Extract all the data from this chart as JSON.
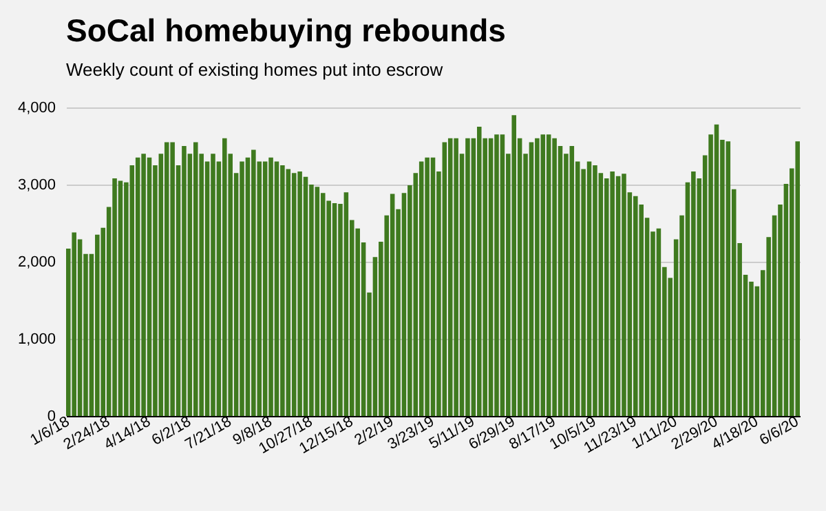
{
  "chart_data": {
    "type": "bar",
    "title": "SoCal homebuying rebounds",
    "subtitle": "Weekly count of existing homes put into escrow",
    "categories": [
      "1/6/18",
      null,
      null,
      null,
      null,
      null,
      null,
      "2/24/18",
      null,
      null,
      null,
      null,
      null,
      null,
      "4/14/18",
      null,
      null,
      null,
      null,
      null,
      null,
      "6/2/18",
      null,
      null,
      null,
      null,
      null,
      null,
      "7/21/18",
      null,
      null,
      null,
      null,
      null,
      null,
      "9/8/18",
      null,
      null,
      null,
      null,
      null,
      null,
      "10/27/18",
      null,
      null,
      null,
      null,
      null,
      null,
      "12/15/18",
      null,
      null,
      null,
      null,
      null,
      null,
      "2/2/19",
      null,
      null,
      null,
      null,
      null,
      null,
      "3/23/19",
      null,
      null,
      null,
      null,
      null,
      null,
      "5/11/19",
      null,
      null,
      null,
      null,
      null,
      null,
      "6/29/19",
      null,
      null,
      null,
      null,
      null,
      null,
      "8/17/19",
      null,
      null,
      null,
      null,
      null,
      null,
      "10/5/19",
      null,
      null,
      null,
      null,
      null,
      null,
      "11/23/19",
      null,
      null,
      null,
      null,
      null,
      null,
      "1/11/20",
      null,
      null,
      null,
      null,
      null,
      null,
      "2/29/20",
      null,
      null,
      null,
      null,
      null,
      null,
      "4/18/20",
      null,
      null,
      null,
      null,
      null,
      null,
      "6/6/20"
    ],
    "values": [
      2170,
      2380,
      2290,
      2100,
      2100,
      2350,
      2440,
      2710,
      3080,
      3050,
      3030,
      3250,
      3350,
      3400,
      3350,
      3250,
      3400,
      3550,
      3550,
      3250,
      3500,
      3400,
      3550,
      3400,
      3300,
      3400,
      3300,
      3600,
      3400,
      3150,
      3300,
      3350,
      3450,
      3300,
      3300,
      3350,
      3300,
      3250,
      3200,
      3150,
      3170,
      3100,
      3000,
      2970,
      2890,
      2790,
      2760,
      2750,
      2900,
      2540,
      2430,
      2250,
      1600,
      2060,
      2260,
      2600,
      2880,
      2680,
      2890,
      2990,
      3150,
      3300,
      3350,
      3350,
      3170,
      3550,
      3600,
      3600,
      3400,
      3600,
      3600,
      3750,
      3600,
      3600,
      3650,
      3650,
      3400,
      3900,
      3600,
      3400,
      3550,
      3600,
      3650,
      3650,
      3600,
      3500,
      3400,
      3500,
      3300,
      3200,
      3300,
      3250,
      3150,
      3080,
      3170,
      3110,
      3140,
      2900,
      2850,
      2740,
      2570,
      2390,
      2430,
      1930,
      1790,
      2290,
      2600,
      3030,
      3170,
      3080,
      3380,
      3650,
      3780,
      3580,
      3560,
      2940,
      2240,
      1830,
      1740,
      1680,
      1890,
      2320,
      2600,
      2740,
      3010,
      3210,
      3560
    ],
    "color": "#3f7a1f",
    "ylim": [
      0,
      4000
    ],
    "yticks": [
      {
        "value": 0,
        "label": "0"
      },
      {
        "value": 1000,
        "label": "1,000"
      },
      {
        "value": 2000,
        "label": "2,000"
      },
      {
        "value": 3000,
        "label": "3,000"
      },
      {
        "value": 4000,
        "label": "4,000"
      }
    ],
    "grid": "y"
  }
}
